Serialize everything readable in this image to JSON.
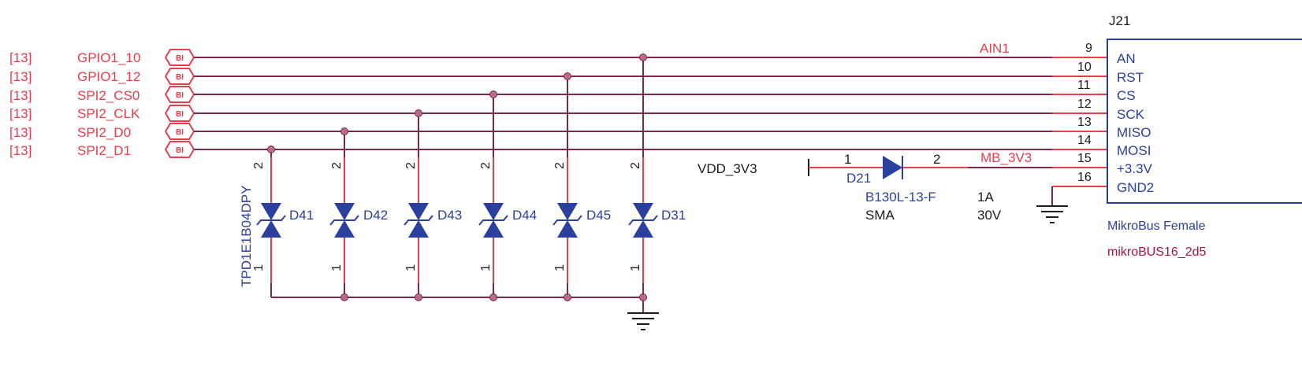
{
  "offpage_signals": [
    {
      "ref": "[13]",
      "name": "GPIO1_10",
      "flag": "BI"
    },
    {
      "ref": "[13]",
      "name": "GPIO1_12",
      "flag": "BI"
    },
    {
      "ref": "[13]",
      "name": "SPI2_CS0",
      "flag": "BI"
    },
    {
      "ref": "[13]",
      "name": "SPI2_CLK",
      "flag": "BI"
    },
    {
      "ref": "[13]",
      "name": "SPI2_D0",
      "flag": "BI"
    },
    {
      "ref": "[13]",
      "name": "SPI2_D1",
      "flag": "BI"
    }
  ],
  "net_labels": {
    "ain1": "AIN1",
    "mb_3v3": "MB_3V3",
    "vdd": "VDD_3V3"
  },
  "tvs_diodes": [
    {
      "ref": "D41",
      "pin_top": "2",
      "pin_bottom": "1"
    },
    {
      "ref": "D42",
      "pin_top": "2",
      "pin_bottom": "1"
    },
    {
      "ref": "D43",
      "pin_top": "2",
      "pin_bottom": "1"
    },
    {
      "ref": "D44",
      "pin_top": "2",
      "pin_bottom": "1"
    },
    {
      "ref": "D45",
      "pin_top": "2",
      "pin_bottom": "1"
    },
    {
      "ref": "D31",
      "pin_top": "2",
      "pin_bottom": "1"
    }
  ],
  "tvs_part": "TPD1E1B04DPY",
  "schottky": {
    "ref": "D21",
    "pin1": "1",
    "pin2": "2",
    "part": "B130L-13-F",
    "package": "SMA",
    "current": "1A",
    "voltage": "30V"
  },
  "connector": {
    "ref": "J21",
    "pins": [
      {
        "num": "9",
        "name": "AN"
      },
      {
        "num": "10",
        "name": "RST"
      },
      {
        "num": "11",
        "name": "CS"
      },
      {
        "num": "12",
        "name": "SCK"
      },
      {
        "num": "13",
        "name": "MISO"
      },
      {
        "num": "14",
        "name": "MOSI"
      },
      {
        "num": "15",
        "name": "+3.3V"
      },
      {
        "num": "16",
        "name": "GND2"
      }
    ],
    "description": "MikroBus Female",
    "footprint": "mikroBUS16_2d5"
  },
  "colors": {
    "wire": "#7a2a48",
    "pin": "#e83e4c",
    "component": "#2b3f9e",
    "text_red": "#e83e4c",
    "text_blue": "#2b3f9e"
  }
}
